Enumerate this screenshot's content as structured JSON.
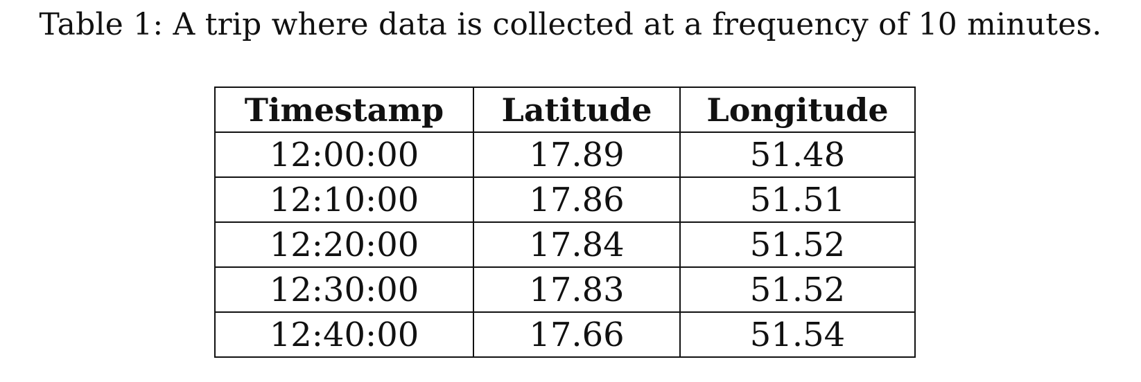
{
  "caption": "Table 1: A trip where data is collected at a frequency of 10 minutes.",
  "table": {
    "headers": [
      "Timestamp",
      "Latitude",
      "Longitude"
    ],
    "rows": [
      [
        "12:00:00",
        "17.89",
        "51.48"
      ],
      [
        "12:10:00",
        "17.86",
        "51.51"
      ],
      [
        "12:20:00",
        "17.84",
        "51.52"
      ],
      [
        "12:30:00",
        "17.83",
        "51.52"
      ],
      [
        "12:40:00",
        "17.66",
        "51.54"
      ]
    ]
  }
}
